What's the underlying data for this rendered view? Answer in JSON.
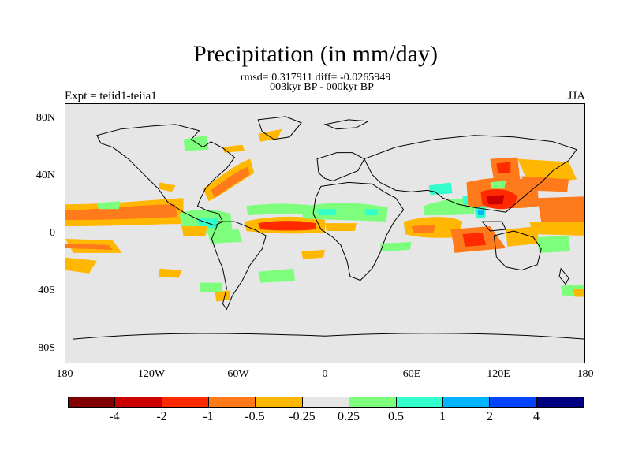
{
  "title": "Precipitation (in mm/day)",
  "stats_line": "rmsd= 0.317911 diff= -0.0265949",
  "period_line": "003kyr BP - 000kyr BP",
  "experiment_label": "Expt = teiid1-teiia1",
  "season_label": "JJA",
  "map": {
    "projection": "cylindrical-equidistant",
    "lon_range": [
      -180,
      180
    ],
    "lat_range": [
      -90,
      90
    ],
    "background_color": "#e6e6e6",
    "y_ticks": [
      "80N",
      "40N",
      "0",
      "40S",
      "80S"
    ],
    "x_ticks": [
      "180",
      "120W",
      "60W",
      "0",
      "60E",
      "120E",
      "180"
    ]
  },
  "colorbar": {
    "colors": [
      "#800000",
      "#cc0000",
      "#ff2a00",
      "#ff7a1a",
      "#ffb700",
      "#e6e6e6",
      "#7dff7d",
      "#33ffcc",
      "#00b3ff",
      "#0044ff",
      "#000080"
    ],
    "labels": [
      "-4",
      "-2",
      "-1",
      "-0.5",
      "-0.25",
      "0.25",
      "0.5",
      "1",
      "2",
      "4"
    ]
  }
}
